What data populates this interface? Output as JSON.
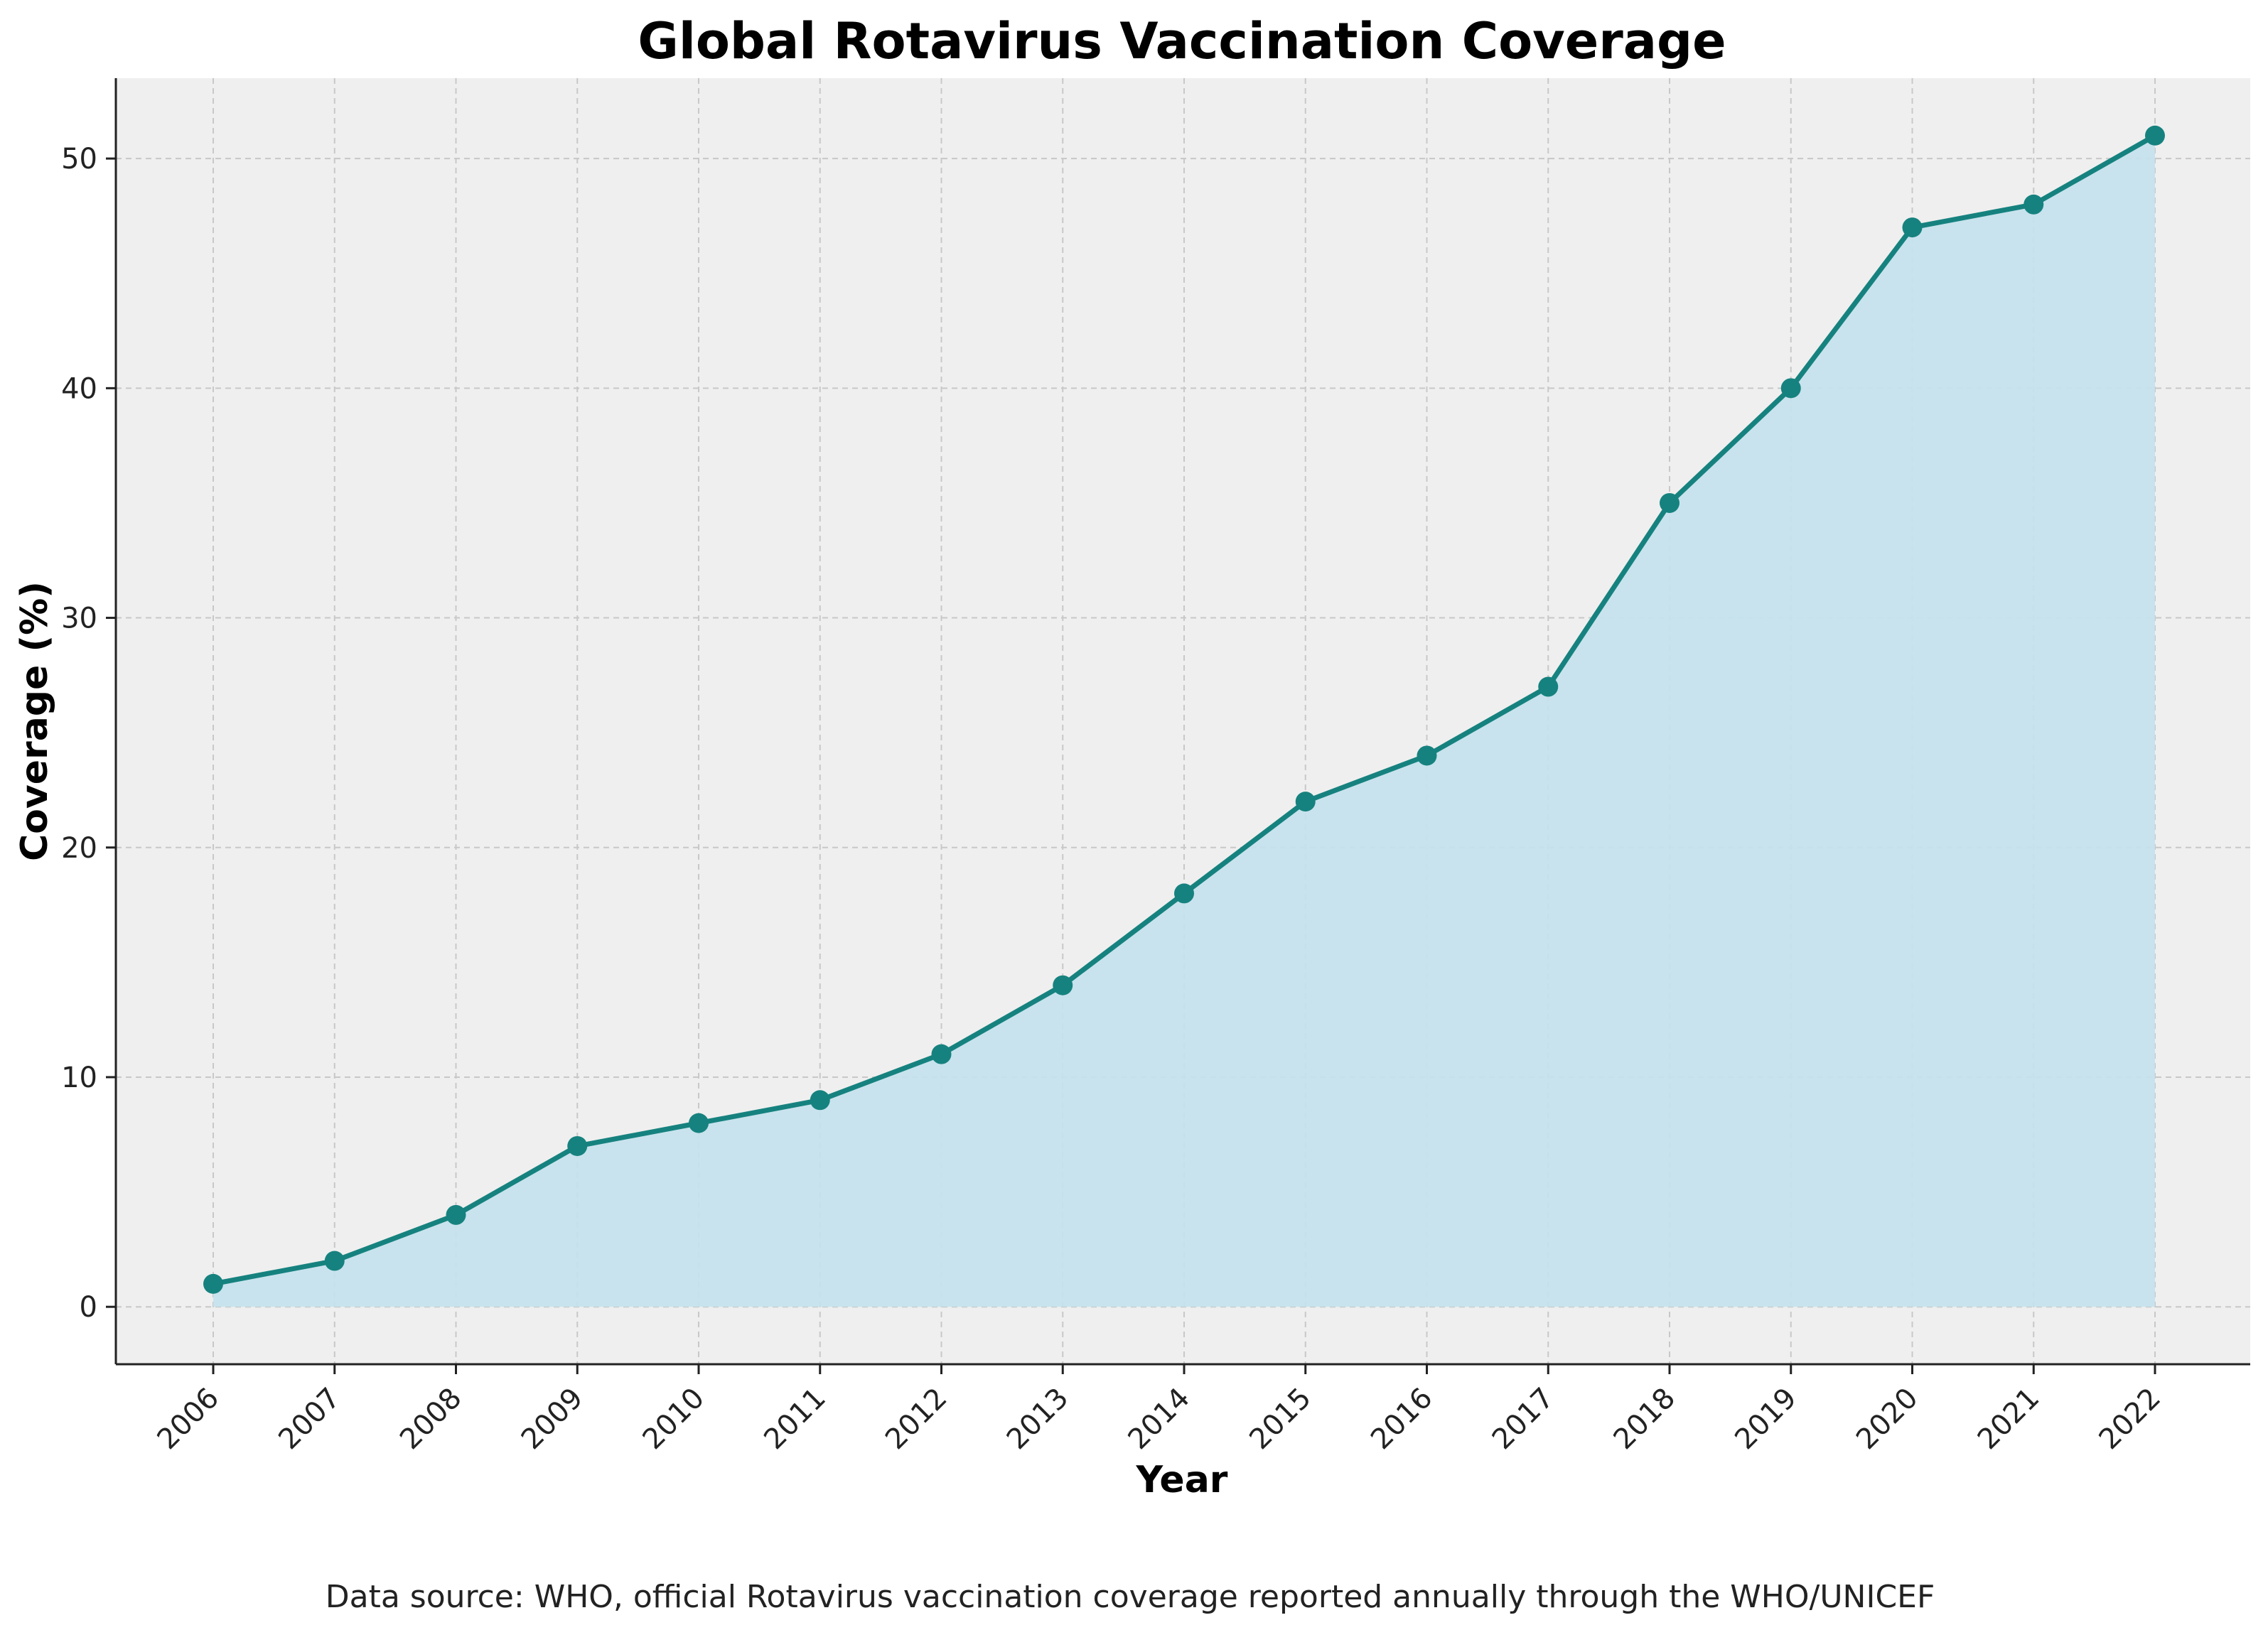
{
  "chart_data": {
    "type": "area",
    "title": "Global Rotavirus Vaccination Coverage",
    "xlabel": "Year",
    "ylabel": "Coverage (%)",
    "categories": [
      "2006",
      "2007",
      "2008",
      "2009",
      "2010",
      "2011",
      "2012",
      "2013",
      "2014",
      "2015",
      "2016",
      "2017",
      "2018",
      "2019",
      "2020",
      "2021",
      "2022"
    ],
    "series": [
      {
        "name": "Coverage",
        "values": [
          1,
          2,
          4,
          7,
          8,
          9,
          11,
          14,
          18,
          22,
          24,
          27,
          35,
          40,
          47,
          48,
          51
        ]
      }
    ],
    "ylim": [
      -2.5,
      53.5
    ],
    "yticks": [
      0,
      10,
      20,
      30,
      40,
      50
    ],
    "grid": true,
    "colors": {
      "line": "#16827f",
      "marker": "#16827f",
      "fill": "#c5e1ec",
      "plot_background": "#efefef",
      "grid": "#c8c8c8"
    },
    "source_note": "Data source: WHO, official Rotavirus vaccination coverage reported annually through the WHO/UNICEF"
  }
}
